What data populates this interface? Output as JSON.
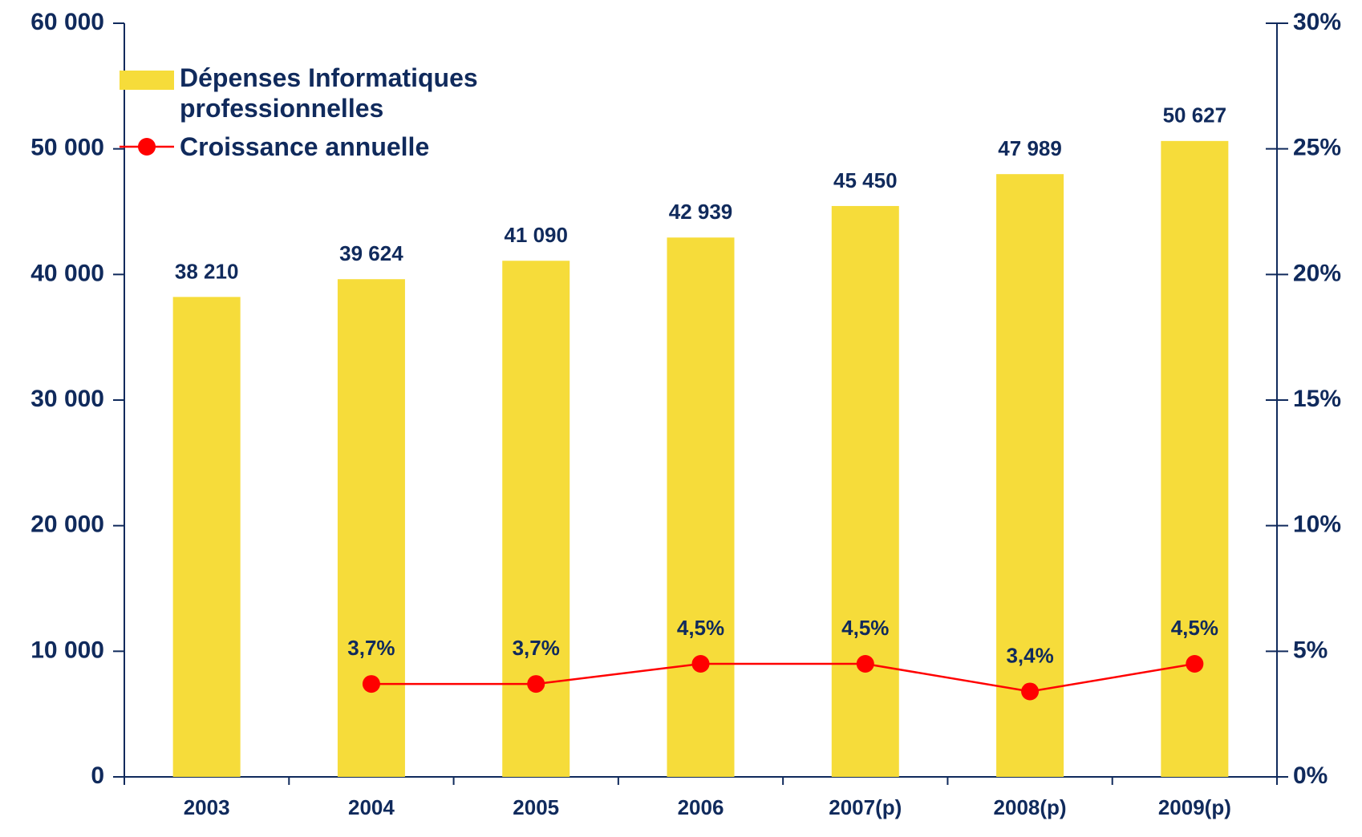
{
  "chart_data": {
    "type": "combo",
    "categories": [
      "2003",
      "2004",
      "2005",
      "2006",
      "2007(p)",
      "2008(p)",
      "2009(p)"
    ],
    "series": [
      {
        "name": "Dépenses Informatiques professionnelles",
        "type": "bar",
        "color": "#f6dc3a",
        "values": [
          38210,
          39624,
          41090,
          42939,
          45450,
          47989,
          50627
        ],
        "value_labels": [
          "38 210",
          "39 624",
          "41 090",
          "42 939",
          "45 450",
          "47 989",
          "50 627"
        ]
      },
      {
        "name": "Croissance annuelle",
        "type": "line",
        "axis": "y2",
        "color": "#ff0000",
        "values": [
          null,
          3.7,
          3.7,
          4.5,
          4.5,
          3.4,
          4.5
        ],
        "value_labels": [
          null,
          "3,7%",
          "3,7%",
          "4,5%",
          "4,5%",
          "3,4%",
          "4,5%"
        ]
      }
    ],
    "ylim": [
      0,
      60000
    ],
    "yticks": [
      0,
      {
        "value": 10000,
        "label": "10 000"
      },
      {
        "value": 20000,
        "label": "20 000"
      },
      {
        "value": 30000,
        "label": "30 000"
      },
      {
        "value": 40000,
        "label": "40 000"
      },
      {
        "value": 50000,
        "label": "50 000"
      },
      {
        "value": 60000,
        "label": "60 000"
      }
    ],
    "y2lim": [
      0,
      30
    ],
    "y2ticks": [
      {
        "value": 0,
        "label": "0%"
      },
      {
        "value": 5,
        "label": "5%"
      },
      {
        "value": 10,
        "label": "10%"
      },
      {
        "value": 15,
        "label": "15%"
      },
      {
        "value": 20,
        "label": "20%"
      },
      {
        "value": 25,
        "label": "25%"
      },
      {
        "value": 30,
        "label": "30%"
      }
    ],
    "legend": "upper left"
  }
}
